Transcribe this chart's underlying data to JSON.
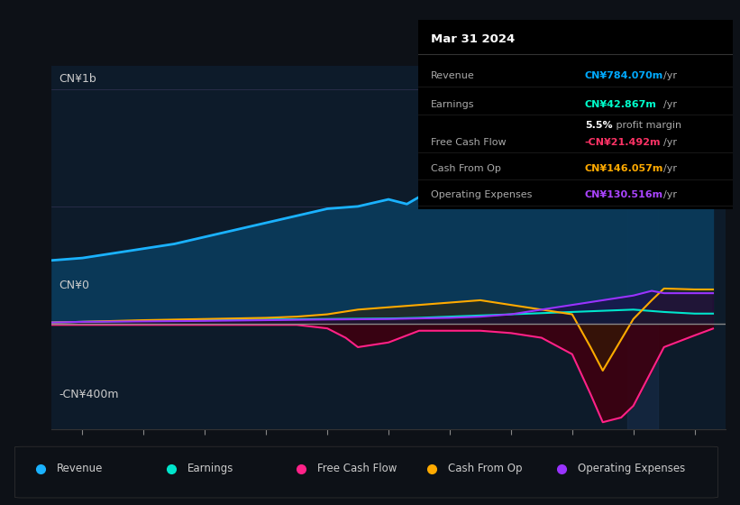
{
  "bg_color": "#0d1117",
  "chart_bg": "#0d1b2a",
  "ylabel_top": "CN¥1b",
  "ylabel_bottom": "-CN¥400m",
  "ylabel_zero": "CN¥0",
  "xmin": 2013.5,
  "xmax": 2024.5,
  "ymin": -450,
  "ymax": 1100,
  "tooltip": {
    "date": "Mar 31 2024",
    "revenue_label": "Revenue",
    "revenue_value": "CN¥784.070m",
    "revenue_color": "#00aaff",
    "earnings_label": "Earnings",
    "earnings_value": "CN¥42.867m",
    "earnings_color": "#00ffcc",
    "margin_value": "5.5%",
    "margin_text": " profit margin",
    "fcf_label": "Free Cash Flow",
    "fcf_value": "-CN¥21.492m",
    "fcf_color": "#ff3366",
    "cashop_label": "Cash From Op",
    "cashop_value": "CN¥146.057m",
    "cashop_color": "#ffaa00",
    "opex_label": "Operating Expenses",
    "opex_value": "CN¥130.516m",
    "opex_color": "#aa44ff"
  },
  "revenue": {
    "x": [
      2013.5,
      2014.0,
      2014.5,
      2015.0,
      2015.5,
      2016.0,
      2016.5,
      2017.0,
      2017.5,
      2018.0,
      2018.5,
      2019.0,
      2019.3,
      2019.5,
      2020.0,
      2020.3,
      2020.5,
      2021.0,
      2021.3,
      2021.5,
      2022.0,
      2022.3,
      2022.5,
      2022.8,
      2023.0,
      2023.3,
      2023.5,
      2024.0,
      2024.3
    ],
    "y": [
      270,
      280,
      300,
      320,
      340,
      370,
      400,
      430,
      460,
      490,
      500,
      530,
      510,
      540,
      560,
      580,
      590,
      650,
      700,
      750,
      850,
      1000,
      980,
      920,
      860,
      700,
      650,
      750,
      784
    ],
    "color": "#1ab2ff",
    "fill_color": "#0a3a5a",
    "linewidth": 2.0
  },
  "earnings": {
    "x": [
      2013.5,
      2014.0,
      2015.0,
      2016.0,
      2017.0,
      2018.0,
      2019.0,
      2019.5,
      2020.0,
      2020.5,
      2021.0,
      2021.5,
      2022.0,
      2022.5,
      2023.0,
      2023.5,
      2024.0,
      2024.3
    ],
    "y": [
      5,
      8,
      12,
      15,
      18,
      20,
      22,
      25,
      30,
      35,
      40,
      45,
      50,
      55,
      60,
      50,
      43,
      43
    ],
    "color": "#00e5cc",
    "fill_color": "#003322",
    "linewidth": 1.5
  },
  "fcf": {
    "x": [
      2013.5,
      2014.0,
      2015.0,
      2016.0,
      2017.0,
      2017.5,
      2018.0,
      2018.3,
      2018.5,
      2019.0,
      2019.3,
      2019.5,
      2020.0,
      2020.5,
      2021.0,
      2021.5,
      2022.0,
      2022.3,
      2022.5,
      2022.8,
      2023.0,
      2023.3,
      2023.5,
      2024.0,
      2024.3
    ],
    "y": [
      -5,
      -5,
      -5,
      -5,
      -5,
      -5,
      -20,
      -60,
      -100,
      -80,
      -50,
      -30,
      -30,
      -30,
      -40,
      -60,
      -130,
      -300,
      -420,
      -400,
      -350,
      -200,
      -100,
      -50,
      -21
    ],
    "color": "#ff2288",
    "fill_color": "#440011",
    "linewidth": 1.5
  },
  "cashfromop": {
    "x": [
      2013.5,
      2014.0,
      2015.0,
      2016.0,
      2017.0,
      2017.5,
      2018.0,
      2018.5,
      2019.0,
      2019.5,
      2020.0,
      2020.5,
      2021.0,
      2021.5,
      2022.0,
      2022.3,
      2022.5,
      2023.0,
      2023.3,
      2023.5,
      2024.0,
      2024.3
    ],
    "y": [
      5,
      8,
      15,
      20,
      25,
      30,
      40,
      60,
      70,
      80,
      90,
      100,
      80,
      60,
      40,
      -100,
      -200,
      20,
      100,
      150,
      146,
      146
    ],
    "color": "#ffaa00",
    "fill_color": "#332200",
    "linewidth": 1.5
  },
  "opex": {
    "x": [
      2013.5,
      2014.0,
      2015.0,
      2016.0,
      2017.0,
      2018.0,
      2019.0,
      2020.0,
      2020.5,
      2021.0,
      2021.5,
      2022.0,
      2022.5,
      2023.0,
      2023.3,
      2023.5,
      2024.0,
      2024.3
    ],
    "y": [
      5,
      8,
      10,
      12,
      15,
      18,
      20,
      25,
      30,
      40,
      60,
      80,
      100,
      120,
      140,
      130,
      130,
      130
    ],
    "color": "#9933ff",
    "fill_color": "#220044",
    "linewidth": 1.5
  },
  "legend": [
    {
      "label": "Revenue",
      "color": "#1ab2ff"
    },
    {
      "label": "Earnings",
      "color": "#00e5cc"
    },
    {
      "label": "Free Cash Flow",
      "color": "#ff2288"
    },
    {
      "label": "Cash From Op",
      "color": "#ffaa00"
    },
    {
      "label": "Operating Expenses",
      "color": "#9933ff"
    }
  ]
}
